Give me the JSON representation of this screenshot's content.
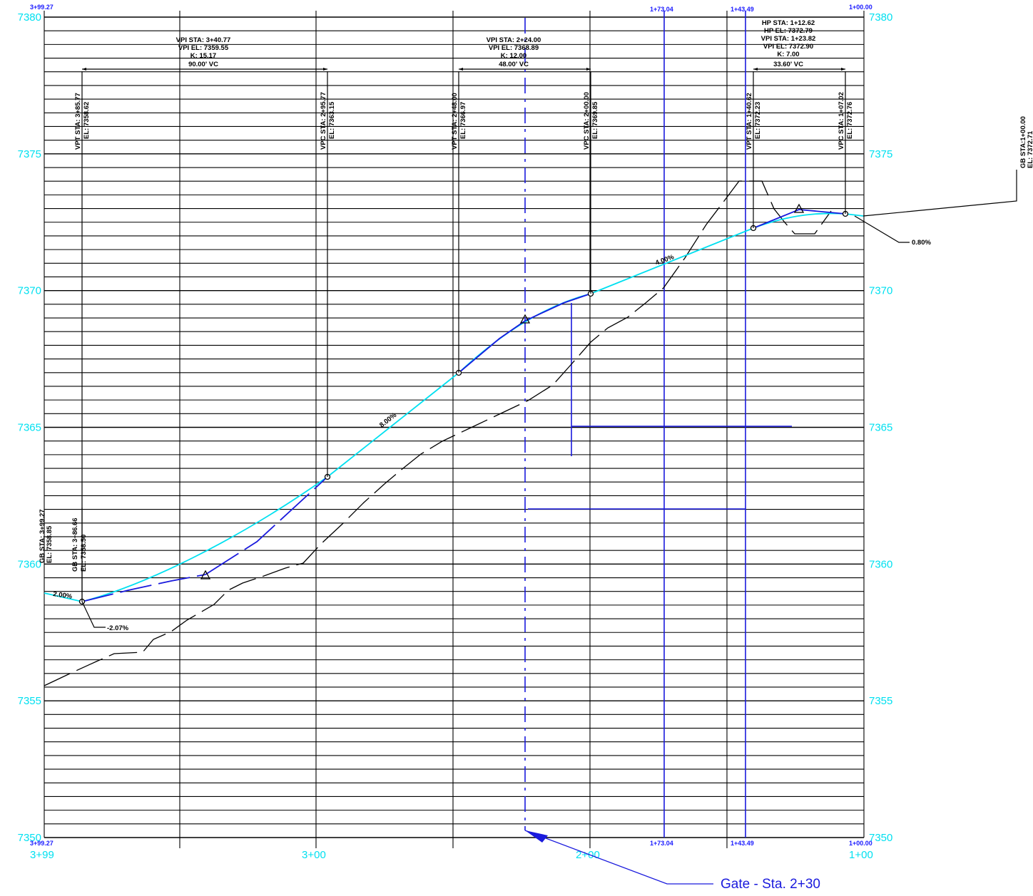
{
  "drawing": {
    "elevation_labels": [
      "7350",
      "7355",
      "7360",
      "7365",
      "7370",
      "7375",
      "7380"
    ],
    "elevation_values": [
      7350,
      7355,
      7360,
      7365,
      7370,
      7375,
      7380
    ],
    "station_axis": {
      "left_top": "3+99.27",
      "left_bottom": "3+99.27",
      "right_top": "1+00.00",
      "right_bottom": "1+00.00",
      "major_labels": [
        "3+99",
        "3+00",
        "2+00",
        "1+00"
      ],
      "major_values": [
        399.27,
        300,
        200,
        100
      ],
      "blue_lines": [
        {
          "label": "1+73.04",
          "value": 173.04
        },
        {
          "label": "1+43.49",
          "value": 143.49
        }
      ]
    },
    "vpi_labels": [
      {
        "lines": [
          "VPI STA: 3+40.77",
          "VPI EL: 7359.55",
          "K: 15.17",
          "90.00' VC"
        ]
      },
      {
        "lines": [
          "VPI STA: 2+24.00",
          "VPI EL: 7368.89",
          "K: 12.00",
          "48.00' VC"
        ]
      },
      {
        "lines": [
          "HP STA: 1+12.62",
          "HP EL: 7372.79",
          "VPI STA: 1+23.82",
          "VPI EL: 7372.90",
          "K: 7.00",
          "33.60' VC"
        ]
      }
    ],
    "vertical_labels": [
      {
        "l1": "VPT STA: 3+85.77",
        "l2": "EL: 7358.62"
      },
      {
        "l1": "VPC STA: 2+95.77",
        "l2": "EL: 7363.15"
      },
      {
        "l1": "VPT STA: 2+48.00",
        "l2": "EL: 7366.97"
      },
      {
        "l1": "VPC STA: 2+00.00",
        "l2": "EL: 7369.85"
      },
      {
        "l1": "VPT STA: 1+40.62",
        "l2": "EL: 7372.23"
      },
      {
        "l1": "VPC STA: 1+07.02",
        "l2": "EL: 7372.76"
      },
      {
        "l1": "GB STA:1+00.00",
        "l2": "EL: 7372.71"
      },
      {
        "l1": "GB STA: 3+99.27",
        "l2": "EL: 7358.85"
      },
      {
        "l1": "GB STA: 3+86.66",
        "l2": "EL: 7358.50"
      }
    ],
    "grade_labels": [
      "2.00%",
      "-2.07%",
      "8.00%",
      "4.00%",
      "0.80%"
    ],
    "gate_callout": "Gate - Sta. 2+30",
    "colors": {
      "grid": "#000000",
      "axis_text": "#00e0f0",
      "finish_grade": "#00e0f0",
      "design_line": "#1a1add",
      "existing_ground": "#000000"
    }
  }
}
